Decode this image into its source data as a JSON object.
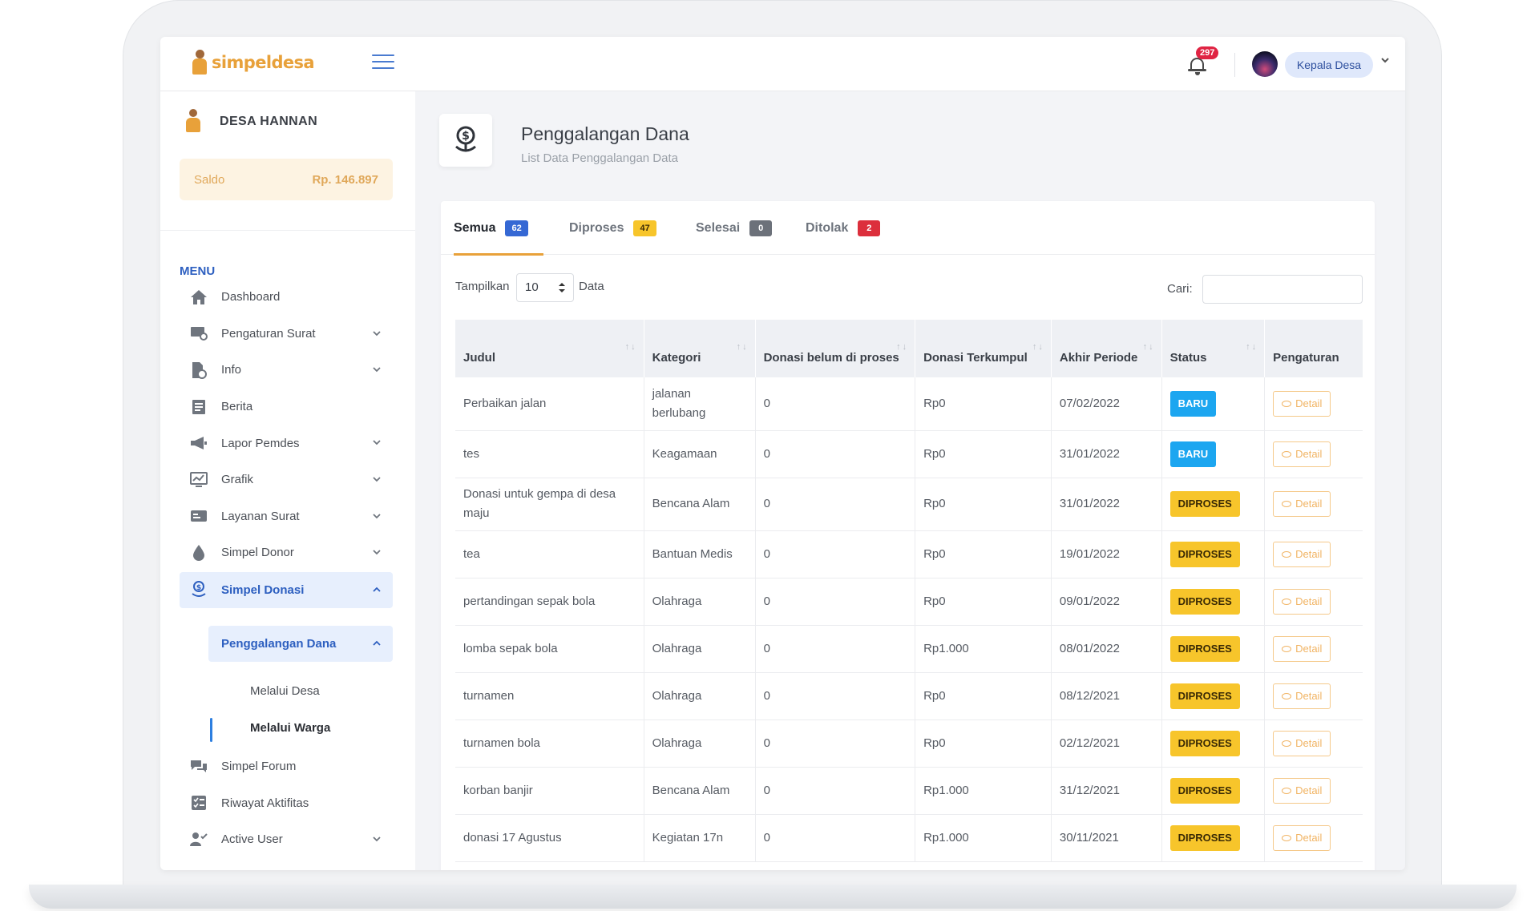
{
  "app": {
    "logo_text": "simpeldesa"
  },
  "topbar": {
    "notification_count": "297",
    "user_name": "Kepala Desa"
  },
  "sidebar": {
    "desa_name": "DESA HANNAN",
    "saldo_label": "Saldo",
    "saldo_value": "Rp. 146.897",
    "menu_title": "MENU",
    "items": [
      {
        "label": "Dashboard",
        "icon": "home-icon",
        "has_chevron": false
      },
      {
        "label": "Pengaturan Surat",
        "icon": "mail-settings-icon",
        "has_chevron": true
      },
      {
        "label": "Info",
        "icon": "info-document-icon",
        "has_chevron": true
      },
      {
        "label": "Berita",
        "icon": "newspaper-icon",
        "has_chevron": false
      },
      {
        "label": "Lapor Pemdes",
        "icon": "megaphone-icon",
        "has_chevron": true
      },
      {
        "label": "Grafik",
        "icon": "chart-icon",
        "has_chevron": true
      },
      {
        "label": "Layanan Surat",
        "icon": "id-card-icon",
        "has_chevron": true
      },
      {
        "label": "Simpel Donor",
        "icon": "blood-drop-icon",
        "has_chevron": true
      },
      {
        "label": "Simpel Donasi",
        "icon": "donation-icon",
        "has_chevron": true,
        "active": true
      }
    ],
    "submenu": {
      "label": "Penggalangan Dana",
      "children": [
        {
          "label": "Melalui Desa"
        },
        {
          "label": "Melalui Warga",
          "active": true
        }
      ]
    },
    "items_after": [
      {
        "label": "Simpel Forum",
        "icon": "forum-icon",
        "has_chevron": false
      },
      {
        "label": "Riwayat Aktifitas",
        "icon": "activity-list-icon",
        "has_chevron": false
      },
      {
        "label": "Active User",
        "icon": "users-icon",
        "has_chevron": true
      }
    ]
  },
  "page": {
    "title": "Penggalangan Dana",
    "subtitle": "List Data Penggalangan Data"
  },
  "tabs": [
    {
      "label": "Semua",
      "count": "62",
      "color": "#3568d4",
      "active": true
    },
    {
      "label": "Diproses",
      "count": "47",
      "color": "#f7c52b"
    },
    {
      "label": "Selesai",
      "count": "0",
      "color": "#6c717a"
    },
    {
      "label": "Ditolak",
      "count": "2",
      "color": "#dc2f3c"
    }
  ],
  "table_controls": {
    "show_label": "Tampilkan",
    "show_value": "10",
    "show_suffix": "Data",
    "search_label": "Cari:",
    "search_value": ""
  },
  "table": {
    "headers": [
      "Judul",
      "Kategori",
      "Donasi belum di proses",
      "Donasi Terkumpul",
      "Akhir Periode",
      "Status",
      "Pengaturan"
    ],
    "detail_label": "Detail",
    "rows": [
      {
        "judul": "Perbaikan jalan",
        "kategori": "jalanan berlubang",
        "belum": "0",
        "terkumpul": "Rp0",
        "akhir": "07/02/2022",
        "status": "BARU"
      },
      {
        "judul": "tes",
        "kategori": "Keagamaan",
        "belum": "0",
        "terkumpul": "Rp0",
        "akhir": "31/01/2022",
        "status": "BARU"
      },
      {
        "judul": "Donasi untuk gempa di desa maju",
        "kategori": "Bencana Alam",
        "belum": "0",
        "terkumpul": "Rp0",
        "akhir": "31/01/2022",
        "status": "DIPROSES"
      },
      {
        "judul": "tea",
        "kategori": "Bantuan Medis",
        "belum": "0",
        "terkumpul": "Rp0",
        "akhir": "19/01/2022",
        "status": "DIPROSES"
      },
      {
        "judul": "pertandingan sepak bola",
        "kategori": "Olahraga",
        "belum": "0",
        "terkumpul": "Rp0",
        "akhir": "09/01/2022",
        "status": "DIPROSES"
      },
      {
        "judul": "lomba sepak bola",
        "kategori": "Olahraga",
        "belum": "0",
        "terkumpul": "Rp1.000",
        "akhir": "08/01/2022",
        "status": "DIPROSES"
      },
      {
        "judul": "turnamen",
        "kategori": "Olahraga",
        "belum": "0",
        "terkumpul": "Rp0",
        "akhir": "08/12/2021",
        "status": "DIPROSES"
      },
      {
        "judul": "turnamen bola",
        "kategori": "Olahraga",
        "belum": "0",
        "terkumpul": "Rp0",
        "akhir": "02/12/2021",
        "status": "DIPROSES"
      },
      {
        "judul": "korban banjir",
        "kategori": "Bencana Alam",
        "belum": "0",
        "terkumpul": "Rp1.000",
        "akhir": "31/12/2021",
        "status": "DIPROSES"
      },
      {
        "judul": "donasi 17 Agustus",
        "kategori": "Kegiatan 17n",
        "belum": "0",
        "terkumpul": "Rp1.000",
        "akhir": "30/11/2021",
        "status": "DIPROSES"
      }
    ]
  }
}
